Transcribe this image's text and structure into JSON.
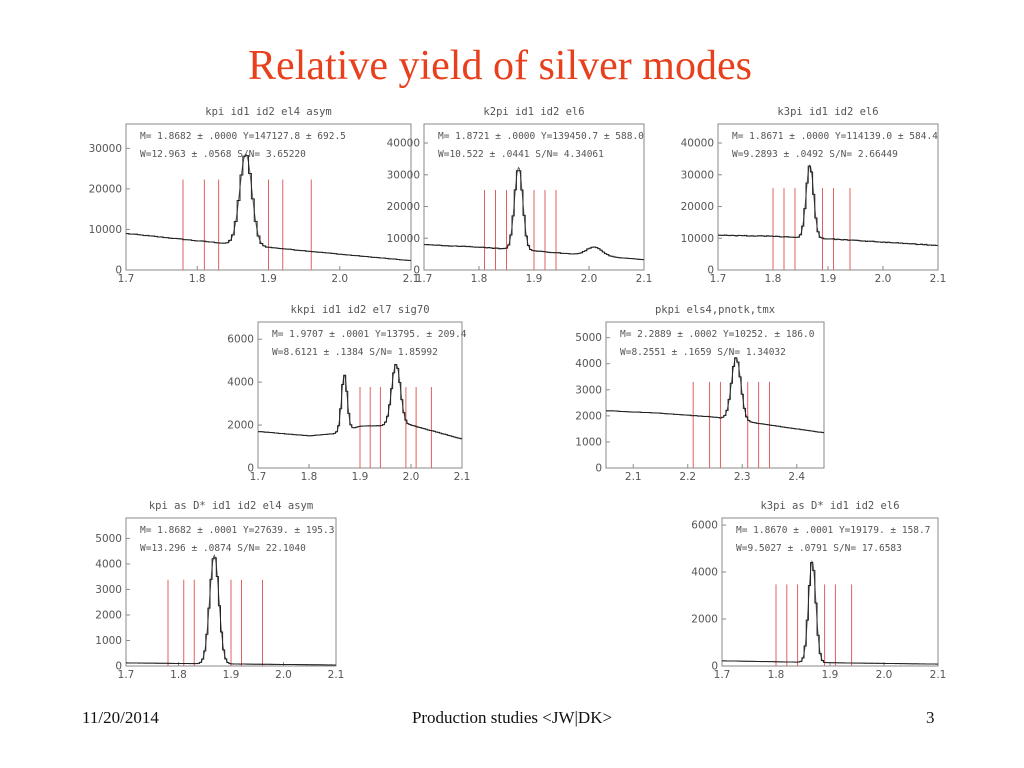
{
  "slide": {
    "title": "Relative yield of silver modes",
    "footer_date": "11/20/2014",
    "footer_center": "Production studies <JW|DK>",
    "page_number": "3"
  },
  "colors": {
    "title": "#e8401c",
    "marker_lines": "#e06060",
    "histogram": "#222222",
    "fit_curve": "#555555",
    "frame": "#8a8a8a",
    "text": "#555555"
  },
  "chart_data": [
    {
      "type": "line",
      "title": "kpi id1 id2 el4 asym",
      "stats": [
        "M= 1.8682 ± .0000 Y=147127.8 ± 692.5",
        "W=12.963 ± .0568 S/N= 3.65220"
      ],
      "x_range": [
        1.7,
        2.1
      ],
      "y_range": [
        0,
        36000
      ],
      "x_ticks": [
        "1.7",
        "1.8",
        "1.9",
        "2.0",
        "2.1"
      ],
      "y_ticks": [
        0,
        10000,
        20000,
        30000
      ],
      "marker_lines_x": [
        1.78,
        1.81,
        1.83,
        1.9,
        1.92,
        1.96
      ],
      "background": {
        "x": [
          1.7,
          1.8,
          1.9,
          2.0,
          2.1
        ],
        "y": [
          9000,
          7200,
          5600,
          3900,
          2300
        ]
      },
      "peaks": [
        {
          "mean": 1.8682,
          "amplitude": 22500,
          "sigma": 0.0085
        }
      ]
    },
    {
      "type": "line",
      "title": "k2pi id1 id2 el6",
      "stats": [
        "M= 1.8721 ± .0000 Y=139450.7 ± 588.0",
        "W=10.522 ± .0441 S/N= 4.34061"
      ],
      "x_range": [
        1.7,
        2.1
      ],
      "y_range": [
        0,
        46000
      ],
      "x_ticks": [
        "1.7",
        "1.8",
        "1.9",
        "2.0",
        "2.1"
      ],
      "y_ticks": [
        0,
        10000,
        20000,
        30000,
        40000
      ],
      "marker_lines_x": [
        1.81,
        1.83,
        1.85,
        1.9,
        1.92,
        1.94
      ],
      "background": {
        "x": [
          1.7,
          1.8,
          1.9,
          2.0,
          2.1
        ],
        "y": [
          8000,
          7200,
          6000,
          4600,
          3300
        ]
      },
      "peaks": [
        {
          "mean": 1.8721,
          "amplitude": 26000,
          "sigma": 0.0075
        },
        {
          "mean": 2.01,
          "amplitude": 2800,
          "sigma": 0.014
        }
      ]
    },
    {
      "type": "line",
      "title": "k3pi id1 id2 el6",
      "stats": [
        "M= 1.8671 ± .0000 Y=114139.0 ± 584.4",
        "W=9.2893 ± .0492 S/N= 2.66449"
      ],
      "x_range": [
        1.7,
        2.1
      ],
      "y_range": [
        0,
        46000
      ],
      "x_ticks": [
        "1.7",
        "1.8",
        "1.9",
        "2.0",
        "2.1"
      ],
      "y_ticks": [
        0,
        10000,
        20000,
        30000,
        40000
      ],
      "marker_lines_x": [
        1.8,
        1.82,
        1.84,
        1.89,
        1.91,
        1.94
      ],
      "background": {
        "x": [
          1.7,
          1.8,
          1.9,
          2.0,
          2.1
        ],
        "y": [
          11000,
          10600,
          9800,
          8800,
          7700
        ]
      },
      "peaks": [
        {
          "mean": 1.8671,
          "amplitude": 23000,
          "sigma": 0.0068
        }
      ]
    },
    {
      "type": "line",
      "title": "kkpi id1 id2 el7 sig70",
      "stats": [
        "M= 1.9707 ± .0001 Y=13795. ± 209.4",
        "W=8.6121 ± .1384 S/N= 1.85992"
      ],
      "x_range": [
        1.7,
        2.1
      ],
      "y_range": [
        0,
        6800
      ],
      "x_ticks": [
        "1.7",
        "1.8",
        "1.9",
        "2.0",
        "2.1"
      ],
      "y_ticks": [
        0,
        2000,
        4000,
        6000
      ],
      "marker_lines_x": [
        1.9,
        1.92,
        1.94,
        1.99,
        2.01,
        2.04
      ],
      "background": {
        "x": [
          1.7,
          1.8,
          1.85,
          1.9,
          2.0,
          2.1
        ],
        "y": [
          1700,
          1500,
          1600,
          1950,
          2000,
          1350
        ]
      },
      "peaks": [
        {
          "mean": 1.8693,
          "amplitude": 2600,
          "sigma": 0.0055
        },
        {
          "mean": 1.9707,
          "amplitude": 2850,
          "sigma": 0.0086
        }
      ]
    },
    {
      "type": "line",
      "title": "pkpi els4,pnotk,tmx",
      "stats": [
        "M= 2.2889 ± .0002 Y=10252. ± 186.0",
        "W=8.2551 ± .1659 S/N= 1.34032"
      ],
      "x_range": [
        2.05,
        2.45
      ],
      "y_range": [
        0,
        5600
      ],
      "x_ticks": [
        "2.1",
        "2.2",
        "2.3",
        "2.4"
      ],
      "x_tick_values": [
        2.1,
        2.2,
        2.3,
        2.4
      ],
      "y_ticks": [
        0,
        1000,
        2000,
        3000,
        4000,
        5000
      ],
      "marker_lines_x": [
        2.21,
        2.24,
        2.26,
        2.31,
        2.33,
        2.35
      ],
      "background": {
        "x": [
          2.05,
          2.15,
          2.25,
          2.35,
          2.45
        ],
        "y": [
          2200,
          2100,
          1950,
          1650,
          1350
        ]
      },
      "peaks": [
        {
          "mean": 2.2889,
          "amplitude": 2400,
          "sigma": 0.0085
        }
      ]
    },
    {
      "type": "line",
      "title": "kpi as D* id1 id2 el4 asym",
      "stats": [
        "M= 1.8682 ± .0001 Y=27639. ± 195.3",
        "W=13.296 ± .0874 S/N= 22.1040"
      ],
      "x_range": [
        1.7,
        2.1
      ],
      "y_range": [
        0,
        5800
      ],
      "x_ticks": [
        "1.7",
        "1.8",
        "1.9",
        "2.0",
        "2.1"
      ],
      "y_ticks": [
        0,
        1000,
        2000,
        3000,
        4000,
        5000
      ],
      "marker_lines_x": [
        1.78,
        1.81,
        1.83,
        1.9,
        1.92,
        1.96
      ],
      "background": {
        "x": [
          1.7,
          1.8,
          1.9,
          2.0,
          2.1
        ],
        "y": [
          120,
          100,
          80,
          60,
          40
        ]
      },
      "peaks": [
        {
          "mean": 1.8682,
          "amplitude": 4250,
          "sigma": 0.0088
        }
      ]
    },
    {
      "type": "line",
      "title": "k3pi as D* id1 id2 el6",
      "stats": [
        "M= 1.8670 ± .0001 Y=19179. ± 158.7",
        "W=9.5027 ± .0791 S/N= 17.6583"
      ],
      "x_range": [
        1.7,
        2.1
      ],
      "y_range": [
        0,
        6300
      ],
      "x_ticks": [
        "1.7",
        "1.8",
        "1.9",
        "2.0",
        "2.1"
      ],
      "y_ticks": [
        0,
        2000,
        4000,
        6000
      ],
      "marker_lines_x": [
        1.8,
        1.82,
        1.84,
        1.89,
        1.91,
        1.94
      ],
      "background": {
        "x": [
          1.7,
          1.8,
          1.9,
          2.0,
          2.1
        ],
        "y": [
          220,
          180,
          140,
          110,
          80
        ]
      },
      "peaks": [
        {
          "mean": 1.867,
          "amplitude": 4300,
          "sigma": 0.0068
        }
      ]
    }
  ]
}
